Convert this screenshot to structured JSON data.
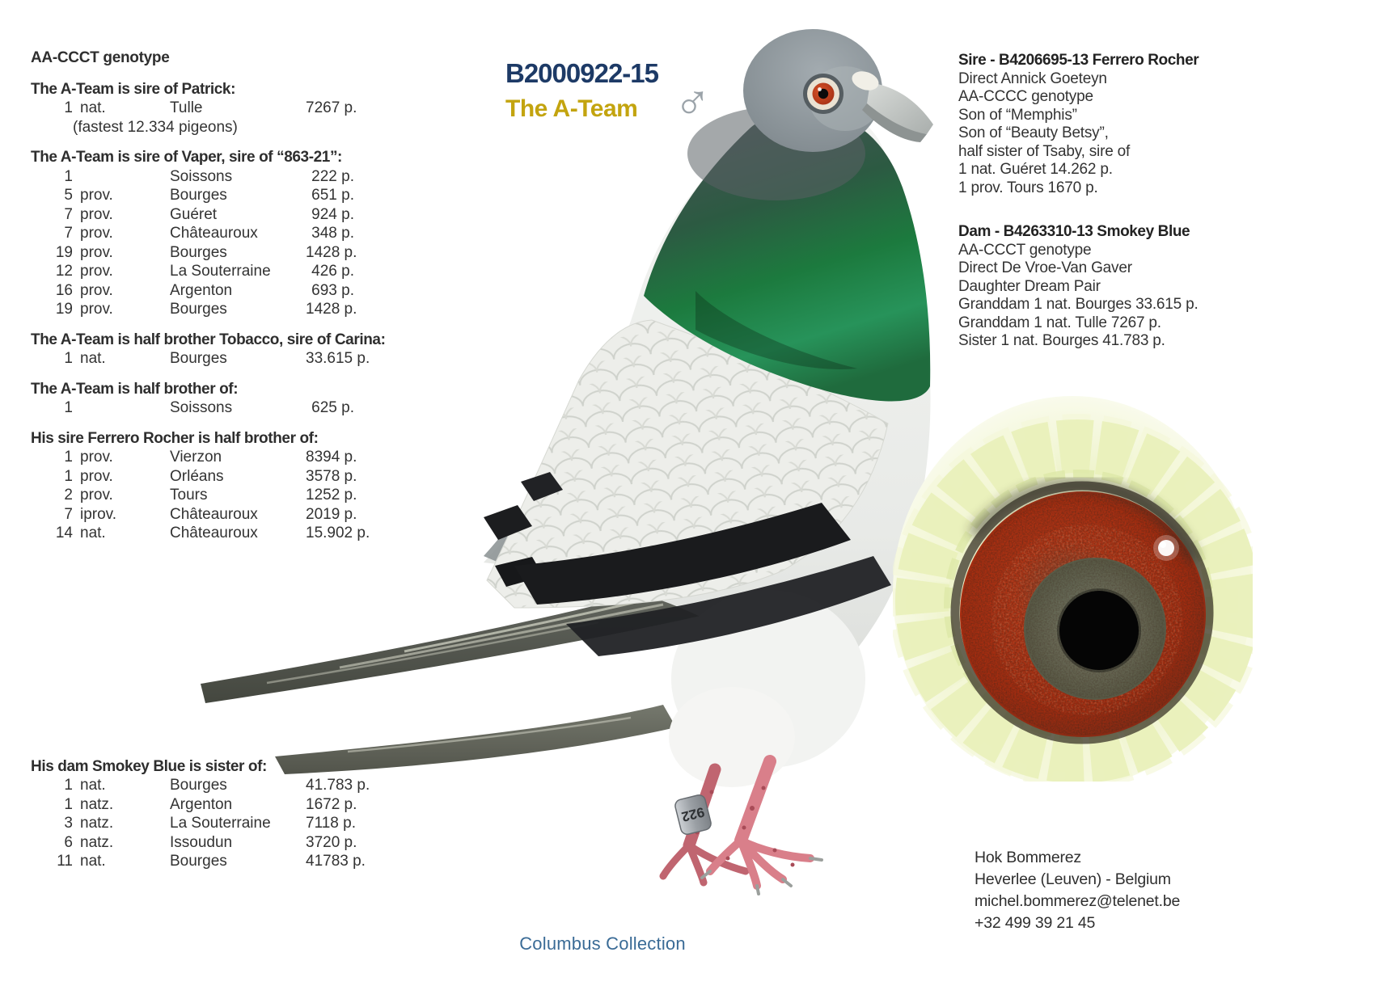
{
  "title": {
    "ring": "B2000922-15",
    "name": "The A-Team",
    "sex_symbol": "♂"
  },
  "left_column": {
    "genotype": "AA-CCCT genotype",
    "sections": [
      {
        "header": "The A-Team is sire of Patrick:",
        "rows": [
          {
            "pos": "1",
            "cat": "nat.",
            "place": "Tulle",
            "count": "7267 p."
          }
        ],
        "note": "(fastest 12.334 pigeons)"
      },
      {
        "header": "The A-Team is sire of Vaper, sire of “863-21”:",
        "rows": [
          {
            "pos": "1",
            "cat": "",
            "place": "Soissons",
            "count": "222 p."
          },
          {
            "pos": "5",
            "cat": "prov.",
            "place": "Bourges",
            "count": "651 p."
          },
          {
            "pos": "7",
            "cat": "prov.",
            "place": "Guéret",
            "count": "924 p."
          },
          {
            "pos": "7",
            "cat": "prov.",
            "place": "Châteauroux",
            "count": "348 p."
          },
          {
            "pos": "19",
            "cat": "prov.",
            "place": "Bourges",
            "count": "1428 p."
          },
          {
            "pos": "12",
            "cat": "prov.",
            "place": "La Souterraine",
            "count": "426 p."
          },
          {
            "pos": "16",
            "cat": "prov.",
            "place": "Argenton",
            "count": "693 p."
          },
          {
            "pos": "19",
            "cat": "prov.",
            "place": "Bourges",
            "count": "1428 p."
          }
        ]
      },
      {
        "header": "The A-Team is half brother Tobacco, sire of Carina:",
        "rows": [
          {
            "pos": "1",
            "cat": "nat.",
            "place": "Bourges",
            "count": "33.615 p."
          }
        ]
      },
      {
        "header": "The A-Team is half brother of:",
        "rows": [
          {
            "pos": "1",
            "cat": "",
            "place": "Soissons",
            "count": "625 p."
          }
        ]
      },
      {
        "header": "His sire Ferrero Rocher is half brother of:",
        "rows": [
          {
            "pos": "1",
            "cat": "prov.",
            "place": "Vierzon",
            "count": "8394 p."
          },
          {
            "pos": "1",
            "cat": "prov.",
            "place": "Orléans",
            "count": "3578 p."
          },
          {
            "pos": "2",
            "cat": "prov.",
            "place": "Tours",
            "count": "1252 p."
          },
          {
            "pos": "7",
            "cat": "iprov.",
            "place": "Châteauroux",
            "count": "2019 p."
          },
          {
            "pos": "14",
            "cat": "nat.",
            "place": "Châteauroux",
            "count": "15.902 p."
          }
        ]
      },
      {
        "header": "His dam Smokey Blue is sister of:",
        "big_gap": true,
        "rows": [
          {
            "pos": "1",
            "cat": "nat.",
            "place": "Bourges",
            "count": "41.783 p."
          },
          {
            "pos": "1",
            "cat": "natz.",
            "place": "Argenton",
            "count": "1672 p."
          },
          {
            "pos": "3",
            "cat": "natz.",
            "place": "La Souterraine",
            "count": "7118 p."
          },
          {
            "pos": "6",
            "cat": "natz.",
            "place": "Issoudun",
            "count": "3720 p."
          },
          {
            "pos": "11",
            "cat": "nat.",
            "place": "Bourges",
            "count": "41783 p."
          }
        ]
      }
    ]
  },
  "right_column": {
    "sire": {
      "header": "Sire - B4206695-13 Ferrero Rocher",
      "lines": [
        "Direct Annick Goeteyn",
        "AA-CCCC genotype",
        "Son of “Memphis”",
        "Son of “Beauty Betsy”,",
        "half sister of Tsaby, sire of",
        "1 nat. Guéret 14.262 p.",
        "1 prov. Tours 1670 p."
      ]
    },
    "dam": {
      "header": "Dam - B4263310-13 Smokey Blue",
      "lines": [
        "AA-CCCT genotype",
        "Direct De Vroe-Van Gaver",
        "Daughter Dream Pair",
        "Granddam 1 nat. Bourges 33.615 p.",
        "Granddam 1 nat. Tulle 7267 p.",
        "Sister 1 nat. Bourges 41.783 p."
      ]
    }
  },
  "contact": {
    "lines": [
      "Hok Bommerez",
      "Heverlee (Leuven) - Belgium",
      "michel.bommerez@telenet.be",
      "+32 499 39 21 45"
    ]
  },
  "footer": {
    "collection": "Columbus Collection"
  },
  "pigeon": {
    "ring_band": "922"
  },
  "colors": {
    "ring_title": "#1d3a66",
    "bird_name": "#c3a40f",
    "collection_text": "#3a6b96",
    "body_text": "#333333",
    "male_symbol": "#9ba3a9"
  }
}
